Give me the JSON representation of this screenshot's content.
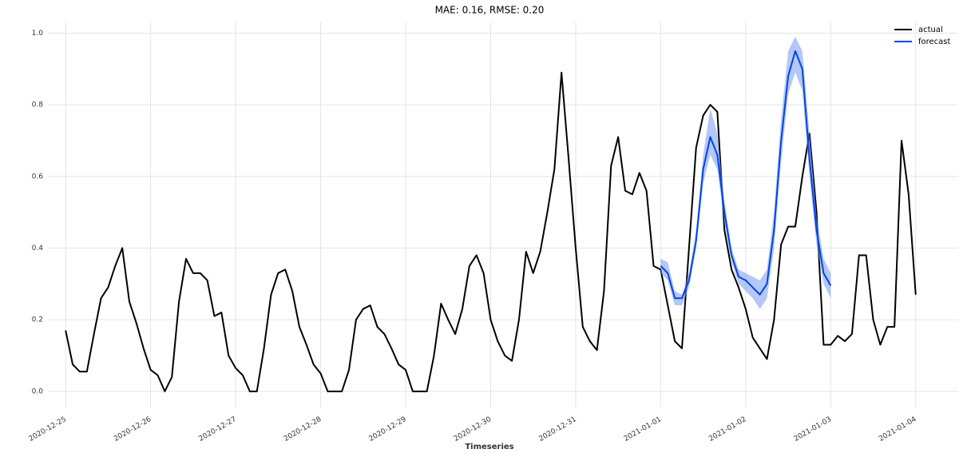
{
  "chart_data": {
    "type": "line",
    "title": "MAE: 0.16, RMSE: 0.20",
    "x_label": "Timeseries",
    "x": [
      "2020-12-25 00:00",
      "2020-12-25 02:00",
      "2020-12-25 04:00",
      "2020-12-25 06:00",
      "2020-12-25 08:00",
      "2020-12-25 10:00",
      "2020-12-25 12:00",
      "2020-12-25 14:00",
      "2020-12-25 16:00",
      "2020-12-25 18:00",
      "2020-12-25 20:00",
      "2020-12-25 22:00",
      "2020-12-26 00:00",
      "2020-12-26 02:00",
      "2020-12-26 04:00",
      "2020-12-26 06:00",
      "2020-12-26 08:00",
      "2020-12-26 10:00",
      "2020-12-26 12:00",
      "2020-12-26 14:00",
      "2020-12-26 16:00",
      "2020-12-26 18:00",
      "2020-12-26 20:00",
      "2020-12-26 22:00",
      "2020-12-27 00:00",
      "2020-12-27 02:00",
      "2020-12-27 04:00",
      "2020-12-27 06:00",
      "2020-12-27 08:00",
      "2020-12-27 10:00",
      "2020-12-27 12:00",
      "2020-12-27 14:00",
      "2020-12-27 16:00",
      "2020-12-27 18:00",
      "2020-12-27 20:00",
      "2020-12-27 22:00",
      "2020-12-28 00:00",
      "2020-12-28 02:00",
      "2020-12-28 04:00",
      "2020-12-28 06:00",
      "2020-12-28 08:00",
      "2020-12-28 10:00",
      "2020-12-28 12:00",
      "2020-12-28 14:00",
      "2020-12-28 16:00",
      "2020-12-28 18:00",
      "2020-12-28 20:00",
      "2020-12-28 22:00",
      "2020-12-29 00:00",
      "2020-12-29 02:00",
      "2020-12-29 04:00",
      "2020-12-29 06:00",
      "2020-12-29 08:00",
      "2020-12-29 10:00",
      "2020-12-29 12:00",
      "2020-12-29 14:00",
      "2020-12-29 16:00",
      "2020-12-29 18:00",
      "2020-12-29 20:00",
      "2020-12-29 22:00",
      "2020-12-30 00:00",
      "2020-12-30 02:00",
      "2020-12-30 04:00",
      "2020-12-30 06:00",
      "2020-12-30 08:00",
      "2020-12-30 10:00",
      "2020-12-30 12:00",
      "2020-12-30 14:00",
      "2020-12-30 16:00",
      "2020-12-30 18:00",
      "2020-12-30 20:00",
      "2020-12-30 22:00",
      "2020-12-31 00:00",
      "2020-12-31 02:00",
      "2020-12-31 04:00",
      "2020-12-31 06:00",
      "2020-12-31 08:00",
      "2020-12-31 10:00",
      "2020-12-31 12:00",
      "2020-12-31 14:00",
      "2020-12-31 16:00",
      "2020-12-31 18:00",
      "2020-12-31 20:00",
      "2020-12-31 22:00",
      "2021-01-01 00:00",
      "2021-01-01 02:00",
      "2021-01-01 04:00",
      "2021-01-01 06:00",
      "2021-01-01 08:00",
      "2021-01-01 10:00",
      "2021-01-01 12:00",
      "2021-01-01 14:00",
      "2021-01-01 16:00",
      "2021-01-01 18:00",
      "2021-01-01 20:00",
      "2021-01-01 22:00",
      "2021-01-02 00:00",
      "2021-01-02 02:00",
      "2021-01-02 04:00",
      "2021-01-02 06:00",
      "2021-01-02 08:00",
      "2021-01-02 10:00",
      "2021-01-02 12:00",
      "2021-01-02 14:00",
      "2021-01-02 16:00",
      "2021-01-02 18:00",
      "2021-01-02 20:00",
      "2021-01-02 22:00",
      "2021-01-03 00:00",
      "2021-01-03 02:00",
      "2021-01-03 04:00",
      "2021-01-03 06:00",
      "2021-01-03 08:00",
      "2021-01-03 10:00",
      "2021-01-03 12:00",
      "2021-01-03 14:00",
      "2021-01-03 16:00",
      "2021-01-03 18:00",
      "2021-01-03 20:00",
      "2021-01-03 22:00",
      "2021-01-04 00:00"
    ],
    "series": [
      {
        "name": "actual",
        "color": "#000000",
        "values": [
          0.17,
          0.075,
          0.055,
          0.055,
          0.16,
          0.26,
          0.29,
          0.35,
          0.4,
          0.25,
          0.19,
          0.12,
          0.06,
          0.045,
          0.0,
          0.04,
          0.25,
          0.37,
          0.33,
          0.33,
          0.31,
          0.21,
          0.22,
          0.1,
          0.065,
          0.045,
          0.0,
          0.0,
          0.12,
          0.27,
          0.33,
          0.34,
          0.28,
          0.18,
          0.13,
          0.075,
          0.05,
          0.0,
          0.0,
          0.0,
          0.06,
          0.2,
          0.23,
          0.24,
          0.18,
          0.16,
          0.12,
          0.075,
          0.06,
          0.0,
          0.0,
          0.0,
          0.1,
          0.245,
          0.2,
          0.16,
          0.23,
          0.35,
          0.38,
          0.33,
          0.2,
          0.14,
          0.1,
          0.085,
          0.2,
          0.39,
          0.33,
          0.39,
          0.5,
          0.62,
          0.89,
          0.65,
          0.4,
          0.18,
          0.14,
          0.115,
          0.28,
          0.63,
          0.71,
          0.56,
          0.55,
          0.61,
          0.56,
          0.35,
          0.34,
          0.24,
          0.14,
          0.12,
          0.4,
          0.68,
          0.77,
          0.8,
          0.78,
          0.45,
          0.34,
          0.29,
          0.23,
          0.15,
          0.12,
          0.09,
          0.2,
          0.41,
          0.46,
          0.46,
          0.6,
          0.72,
          0.5,
          0.13,
          0.13,
          0.155,
          0.14,
          0.16,
          0.38,
          0.38,
          0.2,
          0.13,
          0.18,
          0.18,
          0.7,
          0.55,
          0.27
        ]
      },
      {
        "name": "forecast",
        "color": "#0044ee",
        "values": [
          null,
          null,
          null,
          null,
          null,
          null,
          null,
          null,
          null,
          null,
          null,
          null,
          null,
          null,
          null,
          null,
          null,
          null,
          null,
          null,
          null,
          null,
          null,
          null,
          null,
          null,
          null,
          null,
          null,
          null,
          null,
          null,
          null,
          null,
          null,
          null,
          null,
          null,
          null,
          null,
          null,
          null,
          null,
          null,
          null,
          null,
          null,
          null,
          null,
          null,
          null,
          null,
          null,
          null,
          null,
          null,
          null,
          null,
          null,
          null,
          null,
          null,
          null,
          null,
          null,
          null,
          null,
          null,
          null,
          null,
          null,
          null,
          null,
          null,
          null,
          null,
          null,
          null,
          null,
          null,
          null,
          null,
          null,
          null,
          0.35,
          0.33,
          0.26,
          0.26,
          0.31,
          0.42,
          0.62,
          0.71,
          0.66,
          0.5,
          0.38,
          0.32,
          0.31,
          0.29,
          0.27,
          0.3,
          0.45,
          0.7,
          0.88,
          0.95,
          0.9,
          0.65,
          0.45,
          0.33,
          0.295,
          null,
          null,
          null,
          null,
          null,
          null,
          null,
          null,
          null,
          null,
          null,
          null
        ],
        "band": {
          "color": "#7799ee",
          "lower": [
            null,
            null,
            null,
            null,
            null,
            null,
            null,
            null,
            null,
            null,
            null,
            null,
            null,
            null,
            null,
            null,
            null,
            null,
            null,
            null,
            null,
            null,
            null,
            null,
            null,
            null,
            null,
            null,
            null,
            null,
            null,
            null,
            null,
            null,
            null,
            null,
            null,
            null,
            null,
            null,
            null,
            null,
            null,
            null,
            null,
            null,
            null,
            null,
            null,
            null,
            null,
            null,
            null,
            null,
            null,
            null,
            null,
            null,
            null,
            null,
            null,
            null,
            null,
            null,
            null,
            null,
            null,
            null,
            null,
            null,
            null,
            null,
            null,
            null,
            null,
            null,
            null,
            null,
            null,
            null,
            null,
            null,
            null,
            null,
            0.33,
            0.31,
            0.24,
            0.24,
            0.29,
            0.4,
            0.58,
            0.66,
            0.62,
            0.47,
            0.36,
            0.3,
            0.28,
            0.26,
            0.23,
            0.26,
            0.4,
            0.64,
            0.83,
            0.89,
            0.84,
            0.6,
            0.41,
            0.3,
            0.26,
            null,
            null,
            null,
            null,
            null,
            null,
            null,
            null,
            null,
            null,
            null,
            null
          ],
          "upper": [
            null,
            null,
            null,
            null,
            null,
            null,
            null,
            null,
            null,
            null,
            null,
            null,
            null,
            null,
            null,
            null,
            null,
            null,
            null,
            null,
            null,
            null,
            null,
            null,
            null,
            null,
            null,
            null,
            null,
            null,
            null,
            null,
            null,
            null,
            null,
            null,
            null,
            null,
            null,
            null,
            null,
            null,
            null,
            null,
            null,
            null,
            null,
            null,
            null,
            null,
            null,
            null,
            null,
            null,
            null,
            null,
            null,
            null,
            null,
            null,
            null,
            null,
            null,
            null,
            null,
            null,
            null,
            null,
            null,
            null,
            null,
            null,
            null,
            null,
            null,
            null,
            null,
            null,
            null,
            null,
            null,
            null,
            null,
            null,
            0.37,
            0.36,
            0.28,
            0.27,
            0.33,
            0.45,
            0.66,
            0.79,
            0.72,
            0.53,
            0.4,
            0.34,
            0.33,
            0.32,
            0.31,
            0.34,
            0.5,
            0.76,
            0.95,
            0.99,
            0.95,
            0.72,
            0.49,
            0.37,
            0.33,
            null,
            null,
            null,
            null,
            null,
            null,
            null,
            null,
            null,
            null,
            null,
            null
          ]
        }
      }
    ],
    "xlim": [
      "2020-12-24 19:00",
      "2021-01-04 12:00"
    ],
    "xticks": [
      "2020-12-25",
      "2020-12-26",
      "2020-12-27",
      "2020-12-28",
      "2020-12-29",
      "2020-12-30",
      "2020-12-31",
      "2021-01-01",
      "2021-01-02",
      "2021-01-03",
      "2021-01-04"
    ],
    "ylim": [
      -0.045,
      1.03
    ],
    "yticks": [
      {
        "value": 0.0,
        "label": "0.0"
      },
      0.2,
      0.4,
      0.6,
      0.8,
      {
        "value": 1.0,
        "label": "1.0"
      }
    ],
    "grid": true,
    "legend": "upper right"
  }
}
